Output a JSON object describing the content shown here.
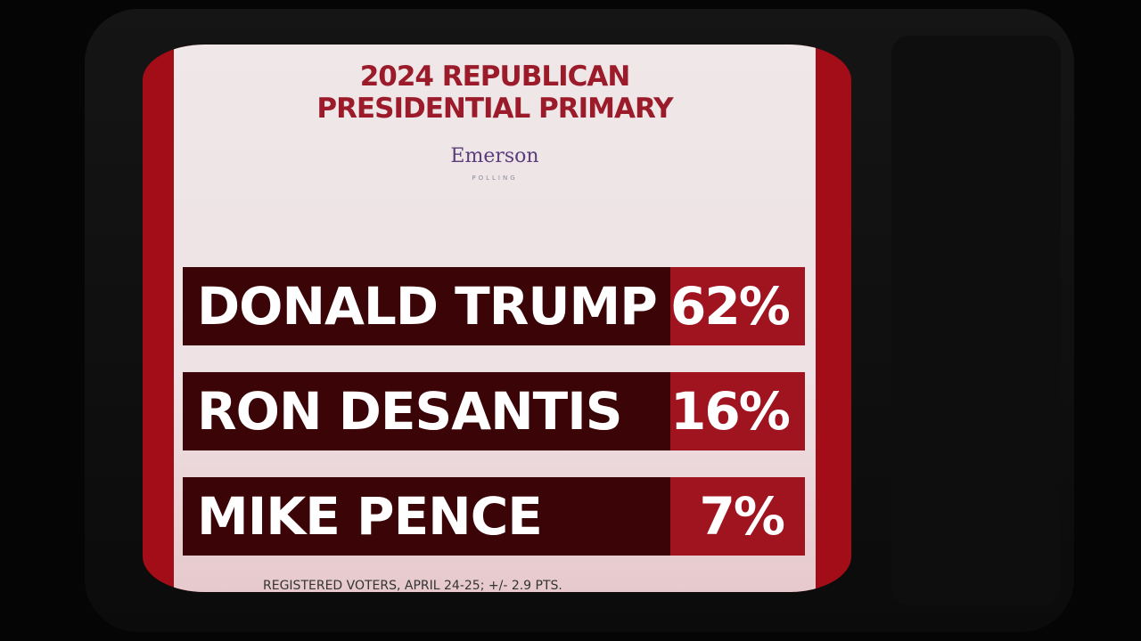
{
  "header": {
    "title_lines": [
      "2024 REPUBLICAN",
      "PRESIDENTIAL PRIMARY"
    ],
    "logo": {
      "name": "Emerson",
      "sub": "POLLING"
    }
  },
  "rows": [
    {
      "name": "DONALD TRUMP",
      "share": "62%"
    },
    {
      "name": "RON DESANTIS",
      "share": "16%"
    },
    {
      "name": "MIKE PENCE",
      "share": "7%"
    }
  ],
  "footer": "REGISTERED VOTERS, APRIL 24-25; +/- 2.9 PTS."
}
